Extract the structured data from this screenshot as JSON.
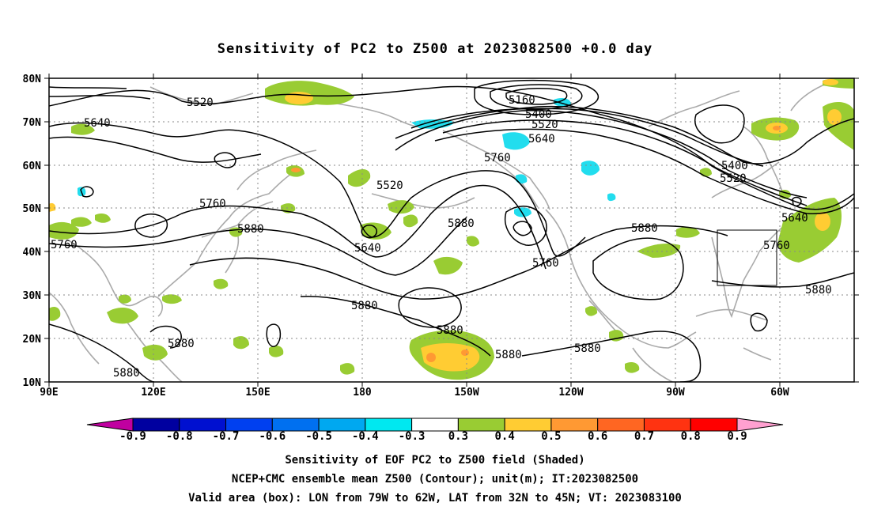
{
  "title": "Sensitivity of PC2 to Z500 at 2023082500 +0.0 day",
  "lat_ticks": [
    "80N",
    "70N",
    "60N",
    "50N",
    "40N",
    "30N",
    "20N",
    "10N"
  ],
  "lon_ticks": [
    "90E",
    "120E",
    "150E",
    "180",
    "150W",
    "120W",
    "90W",
    "60W"
  ],
  "contour_labels": {
    "z5160": "5160",
    "z5400a": "5400",
    "z5520a": "5520",
    "z5640a": "5640",
    "z5760a": "5760",
    "z5640b": "5640",
    "z5520b": "5520",
    "z5400b": "5400",
    "z5520c": "5520",
    "z5640c": "5640",
    "z5760b": "5760",
    "z5880a": "5880",
    "z5760c": "5760",
    "z5880b": "5880",
    "z5640d": "5640",
    "z5760d": "5760",
    "z5880c": "5880",
    "z5880d": "5880",
    "z5760e": "5760",
    "z5520d": "5520",
    "z5880e": "5880",
    "z5880f": "5880",
    "z5880g": "5880",
    "z5880h": "5880",
    "z5880i": "5880",
    "z5880j": "5880"
  },
  "colorbar": {
    "levels": [
      "-0.9",
      "-0.8",
      "-0.7",
      "-0.6",
      "-0.5",
      "-0.4",
      "-0.3",
      "0.3",
      "0.4",
      "0.5",
      "0.6",
      "0.7",
      "0.8",
      "0.9"
    ],
    "colors": [
      "#0000a0",
      "#0010d0",
      "#0040f0",
      "#0070f0",
      "#00a8f0",
      "#00e8f0",
      "#ffffff",
      "#99cc33",
      "#ffcc33",
      "#ff9933",
      "#ff6622",
      "#ff3311",
      "#ff0000"
    ],
    "left_end_color": "#c000a0",
    "right_end_color": "#ffa0d0"
  },
  "captions": {
    "line1": "Sensitivity of EOF PC2 to Z500 field (Shaded)",
    "line2": "NCEP+CMC ensemble mean Z500 (Contour); unit(m); IT:2023082500",
    "line3": "Valid area (box): LON from 79W to 62W, LAT from 32N to 45N; VT: 2023083100"
  },
  "valid_box": {
    "lon_west": "79W",
    "lon_east": "62W",
    "lat_south": "32N",
    "lat_north": "45N"
  }
}
